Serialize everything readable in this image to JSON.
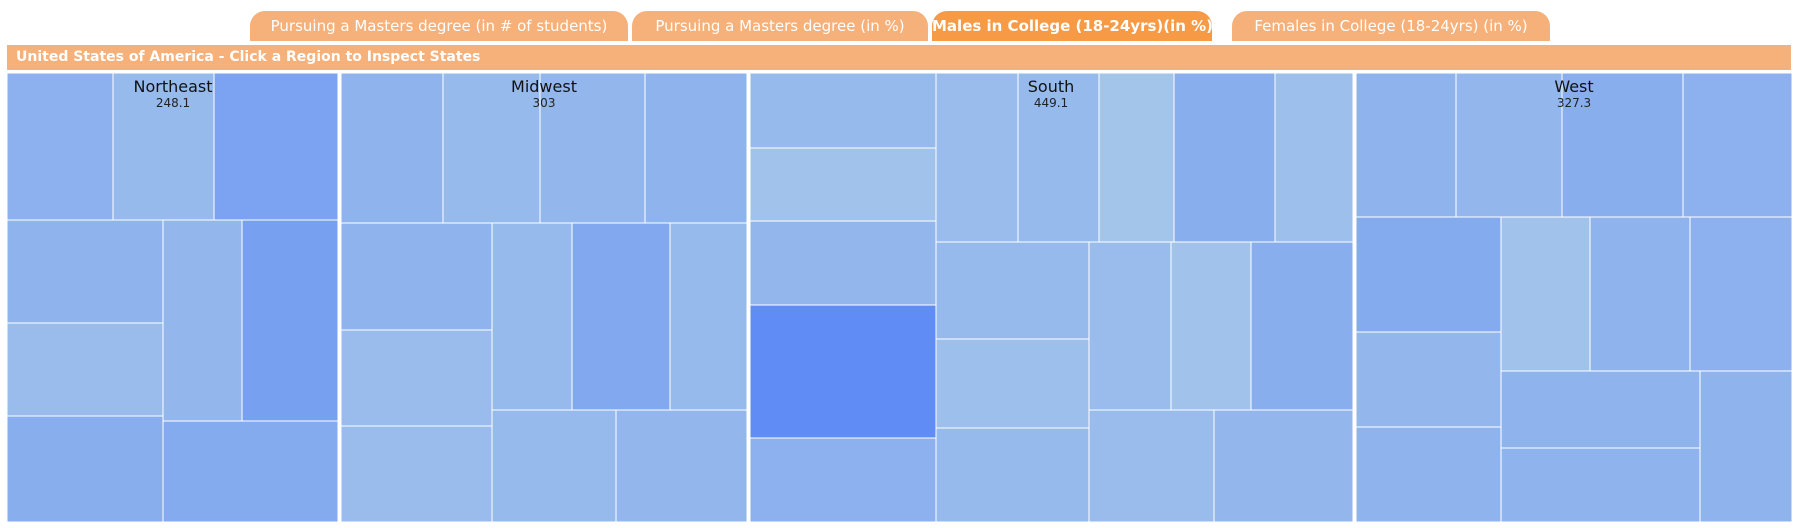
{
  "tabs": [
    {
      "label": "Pursuing a Masters degree (in # of students)",
      "active": false
    },
    {
      "label": "Pursuing a Masters degree (in %)",
      "active": false
    },
    {
      "label": "Males in College (18-24yrs)(in %)",
      "active": true
    },
    {
      "label": "Females in College (18-24yrs) (in %)",
      "active": false
    }
  ],
  "header": {
    "title": "United States of America - Click a Region to Inspect States"
  },
  "colors": {
    "tab_inactive": "#f6b07a",
    "tab_active": "#f79a45",
    "header_bar": "#f6b07a",
    "tile_scale_low": "#a4c5ea",
    "tile_scale_high": "#5f8cf5",
    "tile_border": "#ffffff"
  },
  "chart_data": {
    "type": "treemap",
    "regions": [
      {
        "name": "Northeast",
        "value": "248.1",
        "tile_count": 9
      },
      {
        "name": "Midwest",
        "value": "303",
        "tile_count": 12
      },
      {
        "name": "South",
        "value": "449.1",
        "tile_count": 17
      },
      {
        "name": "West",
        "value": "327.3",
        "tile_count": 13
      }
    ]
  }
}
